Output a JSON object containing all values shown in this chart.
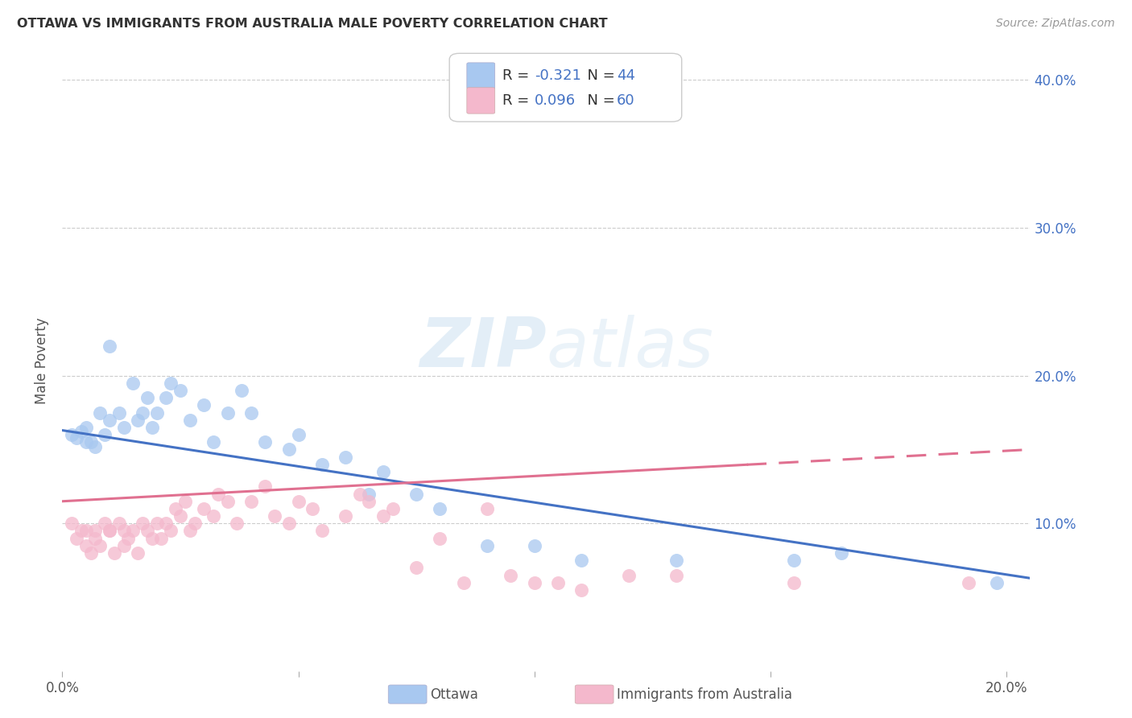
{
  "title": "OTTAWA VS IMMIGRANTS FROM AUSTRALIA MALE POVERTY CORRELATION CHART",
  "source": "Source: ZipAtlas.com",
  "ylabel": "Male Poverty",
  "xlim": [
    0.0,
    0.205
  ],
  "ylim": [
    0.0,
    0.42
  ],
  "xticks": [
    0.0,
    0.05,
    0.1,
    0.15,
    0.2
  ],
  "xtick_labels": [
    "0.0%",
    "",
    "",
    "",
    "20.0%"
  ],
  "yticks": [
    0.0,
    0.1,
    0.2,
    0.3,
    0.4
  ],
  "ytick_labels_right": [
    "",
    "10.0%",
    "20.0%",
    "30.0%",
    "40.0%"
  ],
  "ottawa_color": "#a8c8f0",
  "immig_color": "#f4b8cc",
  "ottawa_line_color": "#4472C4",
  "immig_line_color": "#E07090",
  "background_color": "#ffffff",
  "watermark_zip": "ZIP",
  "watermark_atlas": "atlas",
  "r_ottawa": -0.321,
  "n_ottawa": 44,
  "r_immig": 0.096,
  "n_immig": 60,
  "ottawa_x": [
    0.002,
    0.003,
    0.004,
    0.005,
    0.005,
    0.006,
    0.007,
    0.008,
    0.009,
    0.01,
    0.01,
    0.012,
    0.013,
    0.015,
    0.016,
    0.017,
    0.018,
    0.019,
    0.02,
    0.022,
    0.023,
    0.025,
    0.027,
    0.03,
    0.032,
    0.035,
    0.038,
    0.04,
    0.043,
    0.048,
    0.05,
    0.055,
    0.06,
    0.065,
    0.068,
    0.075,
    0.08,
    0.09,
    0.1,
    0.11,
    0.13,
    0.155,
    0.165,
    0.198
  ],
  "ottawa_y": [
    0.16,
    0.158,
    0.162,
    0.155,
    0.165,
    0.155,
    0.152,
    0.175,
    0.16,
    0.17,
    0.22,
    0.175,
    0.165,
    0.195,
    0.17,
    0.175,
    0.185,
    0.165,
    0.175,
    0.185,
    0.195,
    0.19,
    0.17,
    0.18,
    0.155,
    0.175,
    0.19,
    0.175,
    0.155,
    0.15,
    0.16,
    0.14,
    0.145,
    0.12,
    0.135,
    0.12,
    0.11,
    0.085,
    0.085,
    0.075,
    0.075,
    0.075,
    0.08,
    0.06
  ],
  "immig_x": [
    0.002,
    0.003,
    0.004,
    0.005,
    0.005,
    0.006,
    0.007,
    0.007,
    0.008,
    0.009,
    0.01,
    0.01,
    0.011,
    0.012,
    0.013,
    0.013,
    0.014,
    0.015,
    0.016,
    0.017,
    0.018,
    0.019,
    0.02,
    0.021,
    0.022,
    0.023,
    0.024,
    0.025,
    0.026,
    0.027,
    0.028,
    0.03,
    0.032,
    0.033,
    0.035,
    0.037,
    0.04,
    0.043,
    0.045,
    0.048,
    0.05,
    0.053,
    0.055,
    0.06,
    0.063,
    0.065,
    0.068,
    0.07,
    0.075,
    0.08,
    0.085,
    0.09,
    0.095,
    0.1,
    0.105,
    0.11,
    0.12,
    0.13,
    0.155,
    0.192
  ],
  "immig_y": [
    0.1,
    0.09,
    0.095,
    0.085,
    0.095,
    0.08,
    0.09,
    0.095,
    0.085,
    0.1,
    0.095,
    0.095,
    0.08,
    0.1,
    0.085,
    0.095,
    0.09,
    0.095,
    0.08,
    0.1,
    0.095,
    0.09,
    0.1,
    0.09,
    0.1,
    0.095,
    0.11,
    0.105,
    0.115,
    0.095,
    0.1,
    0.11,
    0.105,
    0.12,
    0.115,
    0.1,
    0.115,
    0.125,
    0.105,
    0.1,
    0.115,
    0.11,
    0.095,
    0.105,
    0.12,
    0.115,
    0.105,
    0.11,
    0.07,
    0.09,
    0.06,
    0.11,
    0.065,
    0.06,
    0.06,
    0.055,
    0.065,
    0.065,
    0.06,
    0.06
  ]
}
